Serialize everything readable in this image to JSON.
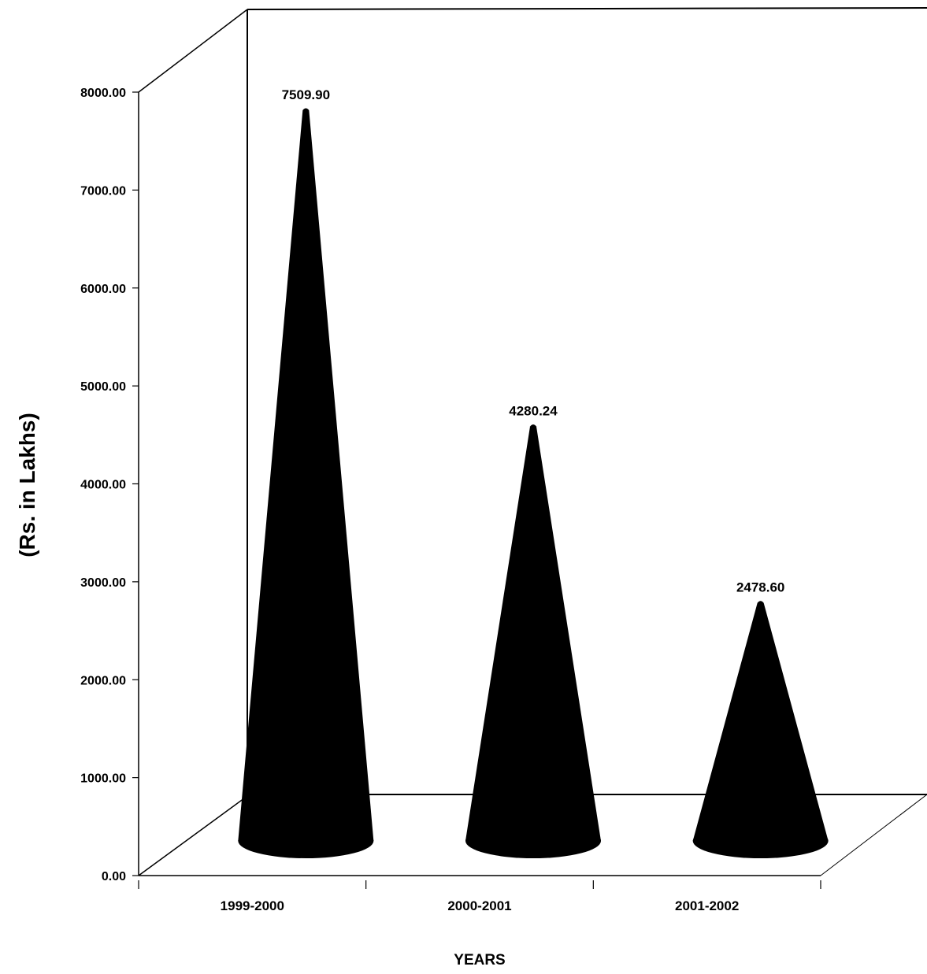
{
  "chart_data": {
    "type": "bar",
    "style": "3d-cone",
    "categories": [
      "1999-2000",
      "2000-2001",
      "2001-2002"
    ],
    "values": [
      7509.9,
      4280.24,
      2478.6
    ],
    "data_labels": [
      "7509.90",
      "4280.24",
      "2478.60"
    ],
    "ylim": [
      0,
      8000
    ],
    "yticks": [
      "0.00",
      "1000.00",
      "2000.00",
      "3000.00",
      "4000.00",
      "5000.00",
      "6000.00",
      "7000.00",
      "8000.00"
    ],
    "ylabel": "(Rs. in Lakhs)",
    "xlabel": "YEARS",
    "title": "",
    "grid": false,
    "legend": "none",
    "bar_color": "#000000"
  }
}
